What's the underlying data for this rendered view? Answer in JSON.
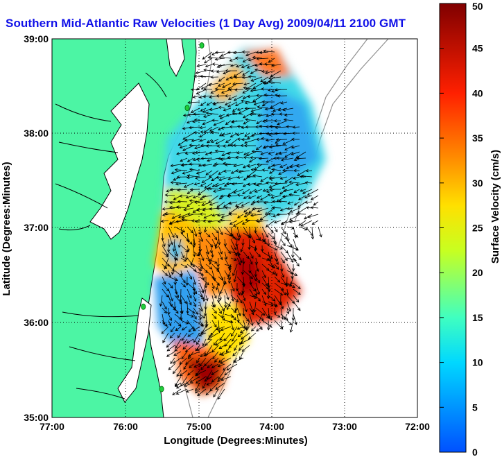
{
  "title": "Southern Mid-Atlantic Raw Velocities (1 Day Avg) 2009/04/11 2100 GMT",
  "x_axis": {
    "label": "Longitude (Degrees:Minutes)",
    "ticks": [
      "77:00",
      "76:00",
      "75:00",
      "74:00",
      "73:00",
      "72:00"
    ]
  },
  "y_axis": {
    "label": "Latitude (Degrees:Minutes)",
    "ticks": [
      "39:00",
      "38:00",
      "37:00",
      "36:00",
      "35:00"
    ]
  },
  "colorbar": {
    "label": "Surface Velocity (cm/s)",
    "min": 0,
    "max": 50,
    "ticks": [
      "0",
      "5",
      "10",
      "15",
      "20",
      "25",
      "30",
      "35",
      "40",
      "45",
      "50"
    ]
  },
  "colors": {
    "land": "#4cf5a4",
    "coastline": "#000000",
    "title": "#1010e8",
    "station": "#1fcf3a"
  },
  "grid": "dotted",
  "stations": [
    {
      "lon": -74.95,
      "lat": 38.93
    },
    {
      "lon": -75.15,
      "lat": 38.27
    },
    {
      "lon": -75.75,
      "lat": 36.17
    },
    {
      "lon": -75.5,
      "lat": 35.3
    }
  ]
}
